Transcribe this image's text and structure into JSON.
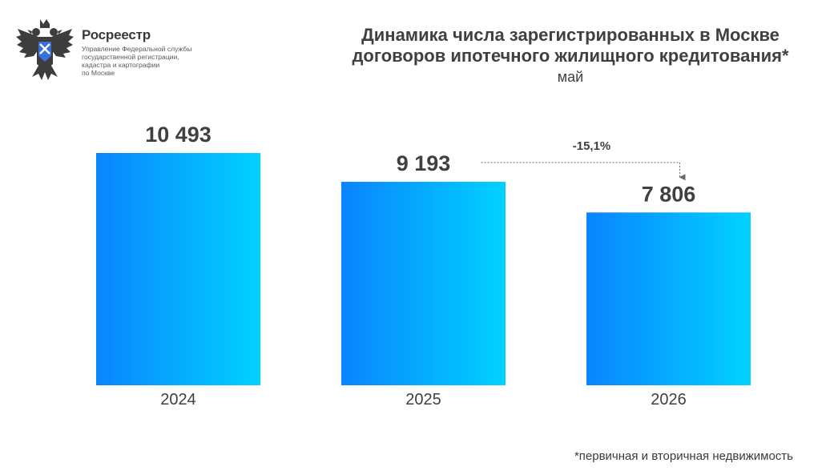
{
  "header": {
    "org_name": "Росреестр",
    "org_sub": "Управление Федеральной службы\nгосударственной регистрации,\nкадастра и картографии\nпо Москве",
    "logo_icon": "double-headed-eagle-emblem-icon"
  },
  "chart_data": {
    "type": "bar",
    "title": "Динамика числа зарегистрированных в Москве\nдоговоров ипотечного жилищного кредитования*",
    "subtitle": "май",
    "categories": [
      "2024",
      "2025",
      "2026"
    ],
    "values": [
      10493,
      9193,
      7806
    ],
    "value_labels": [
      "10 493",
      "9 193",
      "7 806"
    ],
    "annotation": {
      "text": "-15,1%",
      "from": "2025",
      "to": "2026"
    },
    "bar_gradient": [
      "#0a84ff",
      "#00d2ff"
    ],
    "grid": false,
    "legend": "none",
    "ylim": [
      0,
      10493
    ]
  },
  "footnote": "*первичная и вторичная недвижимость"
}
